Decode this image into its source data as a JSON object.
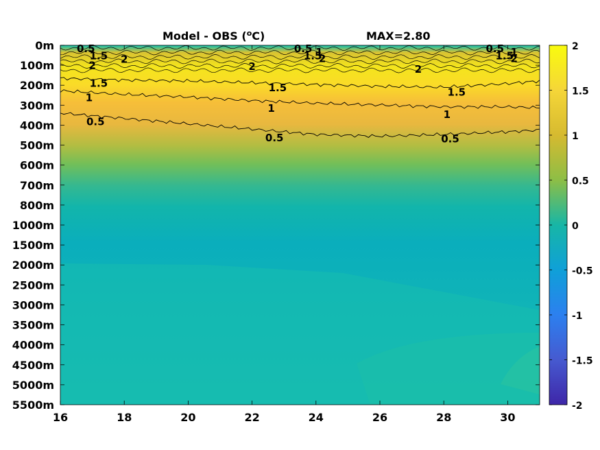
{
  "chart_data": {
    "type": "heatmap",
    "title": "Model - OBS (",
    "title_superscript": "o",
    "title_suffix": "C)",
    "max_label": "MAX=2.80",
    "xlim": [
      16,
      31
    ],
    "x_ticks": [
      16,
      18,
      20,
      22,
      24,
      26,
      28,
      30
    ],
    "x_tick_labels": [
      "16",
      "18",
      "20",
      "22",
      "24",
      "26",
      "28",
      "30"
    ],
    "y_tick_labels": [
      "0m",
      "100m",
      "200m",
      "300m",
      "400m",
      "500m",
      "600m",
      "700m",
      "800m",
      "1000m",
      "1500m",
      "2000m",
      "2500m",
      "3000m",
      "3500m",
      "4000m",
      "4500m",
      "5000m",
      "5500m"
    ],
    "colorbar": {
      "range": [
        -2,
        2
      ],
      "ticks": [
        2,
        1.5,
        1,
        0.5,
        0,
        -0.5,
        -1,
        -1.5,
        -2
      ],
      "tick_labels": [
        "2",
        "1.5",
        "1",
        "0.5",
        "0",
        "-0.5",
        "-1",
        "-1.5",
        "-2"
      ],
      "colormap": "parula"
    },
    "contour_levels": [
      0.5,
      1,
      1.5,
      2
    ],
    "contours": [
      {
        "level": 0.5,
        "points": [
          [
            16,
            380
          ],
          [
            17,
            395
          ],
          [
            18,
            410
          ],
          [
            20,
            440
          ],
          [
            22,
            470
          ],
          [
            24,
            500
          ],
          [
            26,
            510
          ],
          [
            28,
            500
          ],
          [
            30,
            485
          ],
          [
            31,
            475
          ]
        ]
      },
      {
        "level": 1,
        "points": [
          [
            16,
            255
          ],
          [
            18,
            275
          ],
          [
            20,
            290
          ],
          [
            22,
            310
          ],
          [
            24,
            325
          ],
          [
            26,
            335
          ],
          [
            28,
            345
          ],
          [
            30,
            345
          ],
          [
            31,
            350
          ]
        ]
      },
      {
        "level": 1.5,
        "points": [
          [
            16,
            185
          ],
          [
            18,
            195
          ],
          [
            20,
            200
          ],
          [
            22,
            210
          ],
          [
            24,
            220
          ],
          [
            26,
            230
          ],
          [
            28,
            235
          ],
          [
            30,
            215
          ],
          [
            31,
            200
          ]
        ]
      }
    ],
    "contour_labels": [
      {
        "text": "0.5",
        "x": 16.8,
        "y": 0
      },
      {
        "text": "1.5",
        "x": 17.2,
        "y": 40
      },
      {
        "text": "2",
        "x": 18.0,
        "y": 60
      },
      {
        "text": "0.5",
        "x": 23.6,
        "y": 0
      },
      {
        "text": "1",
        "x": 24.1,
        "y": 20
      },
      {
        "text": "1.5",
        "x": 23.9,
        "y": 40
      },
      {
        "text": "2",
        "x": 24.2,
        "y": 55
      },
      {
        "text": "0.5",
        "x": 29.6,
        "y": 0
      },
      {
        "text": "1",
        "x": 30.2,
        "y": 20
      },
      {
        "text": "1.5",
        "x": 29.9,
        "y": 40
      },
      {
        "text": "2",
        "x": 30.2,
        "y": 55
      },
      {
        "text": "2",
        "x": 17.0,
        "y": 95
      },
      {
        "text": "2",
        "x": 22.0,
        "y": 100
      },
      {
        "text": "2",
        "x": 27.2,
        "y": 115
      },
      {
        "text": "1.5",
        "x": 17.2,
        "y": 195
      },
      {
        "text": "1.5",
        "x": 22.8,
        "y": 220
      },
      {
        "text": "1.5",
        "x": 28.4,
        "y": 245
      },
      {
        "text": "1",
        "x": 16.9,
        "y": 275
      },
      {
        "text": "1",
        "x": 22.6,
        "y": 335
      },
      {
        "text": "1",
        "x": 28.1,
        "y": 370
      },
      {
        "text": "0.5",
        "x": 17.1,
        "y": 410
      },
      {
        "text": "0.5",
        "x": 22.7,
        "y": 500
      },
      {
        "text": "0.5",
        "x": 28.2,
        "y": 505
      }
    ],
    "grid": false,
    "legend": "none"
  }
}
